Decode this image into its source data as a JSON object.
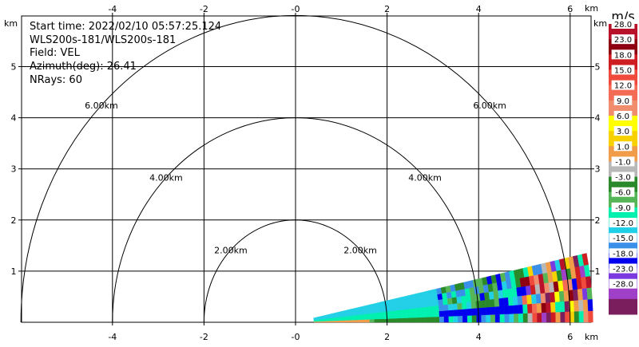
{
  "info": {
    "start_time": "Start time: 2022/02/10 05:57:25.124",
    "instrument": "WLS200s-181/WLS200s-181",
    "field": "Field: VEL",
    "azimuth": "Azimuth(deg): 26.41",
    "nrays": "NRays: 60"
  },
  "chart_data": {
    "type": "rhi",
    "x_axis": {
      "unit_label": "km",
      "ticks": [
        -4,
        -2,
        0,
        2,
        4,
        6
      ],
      "tick_labels": [
        "-4",
        "-2",
        "-0",
        "2",
        "4",
        "6"
      ],
      "range": [
        -5.8,
        6.4
      ]
    },
    "y_axis": {
      "unit_label": "km",
      "ticks": [
        1,
        2,
        3,
        4,
        5
      ],
      "tick_labels": [
        "1",
        "2",
        "3",
        "4",
        "5"
      ],
      "range": [
        0,
        5.8
      ]
    },
    "range_rings": [
      {
        "radius_km": 2,
        "label": "2.00km"
      },
      {
        "radius_km": 4,
        "label": "4.00km"
      },
      {
        "radius_km": 6,
        "label": "6.00km"
      }
    ],
    "sweep": {
      "min_elevation_deg": 0,
      "max_elevation_deg": 12,
      "start_range_km": 0.4,
      "max_range_km": 6.5
    },
    "colorbar": {
      "title": "m/s",
      "tick_labels": [
        "28.0",
        "23.0",
        "18.0",
        "15.0",
        "12.0",
        "9.0",
        "6.0",
        "3.0",
        "1.0",
        "-1.0",
        "-3.0",
        "-6.0",
        "-9.0",
        "-12.0",
        "-15.0",
        "-18.0",
        "-23.0",
        "-28.0"
      ],
      "colors": [
        "#b8122b",
        "#8e0010",
        "#ce1e22",
        "#ef4a3c",
        "#f36a55",
        "#f08d6c",
        "#ffff00",
        "#f7d200",
        "#f09c49",
        "#b8b8b8",
        "#2a8a2a",
        "#56b556",
        "#00f0b0",
        "#21cfe6",
        "#3a8fe8",
        "#0000ee",
        "#7a3ae0",
        "#a040c8",
        "#7a1e5e"
      ]
    }
  }
}
